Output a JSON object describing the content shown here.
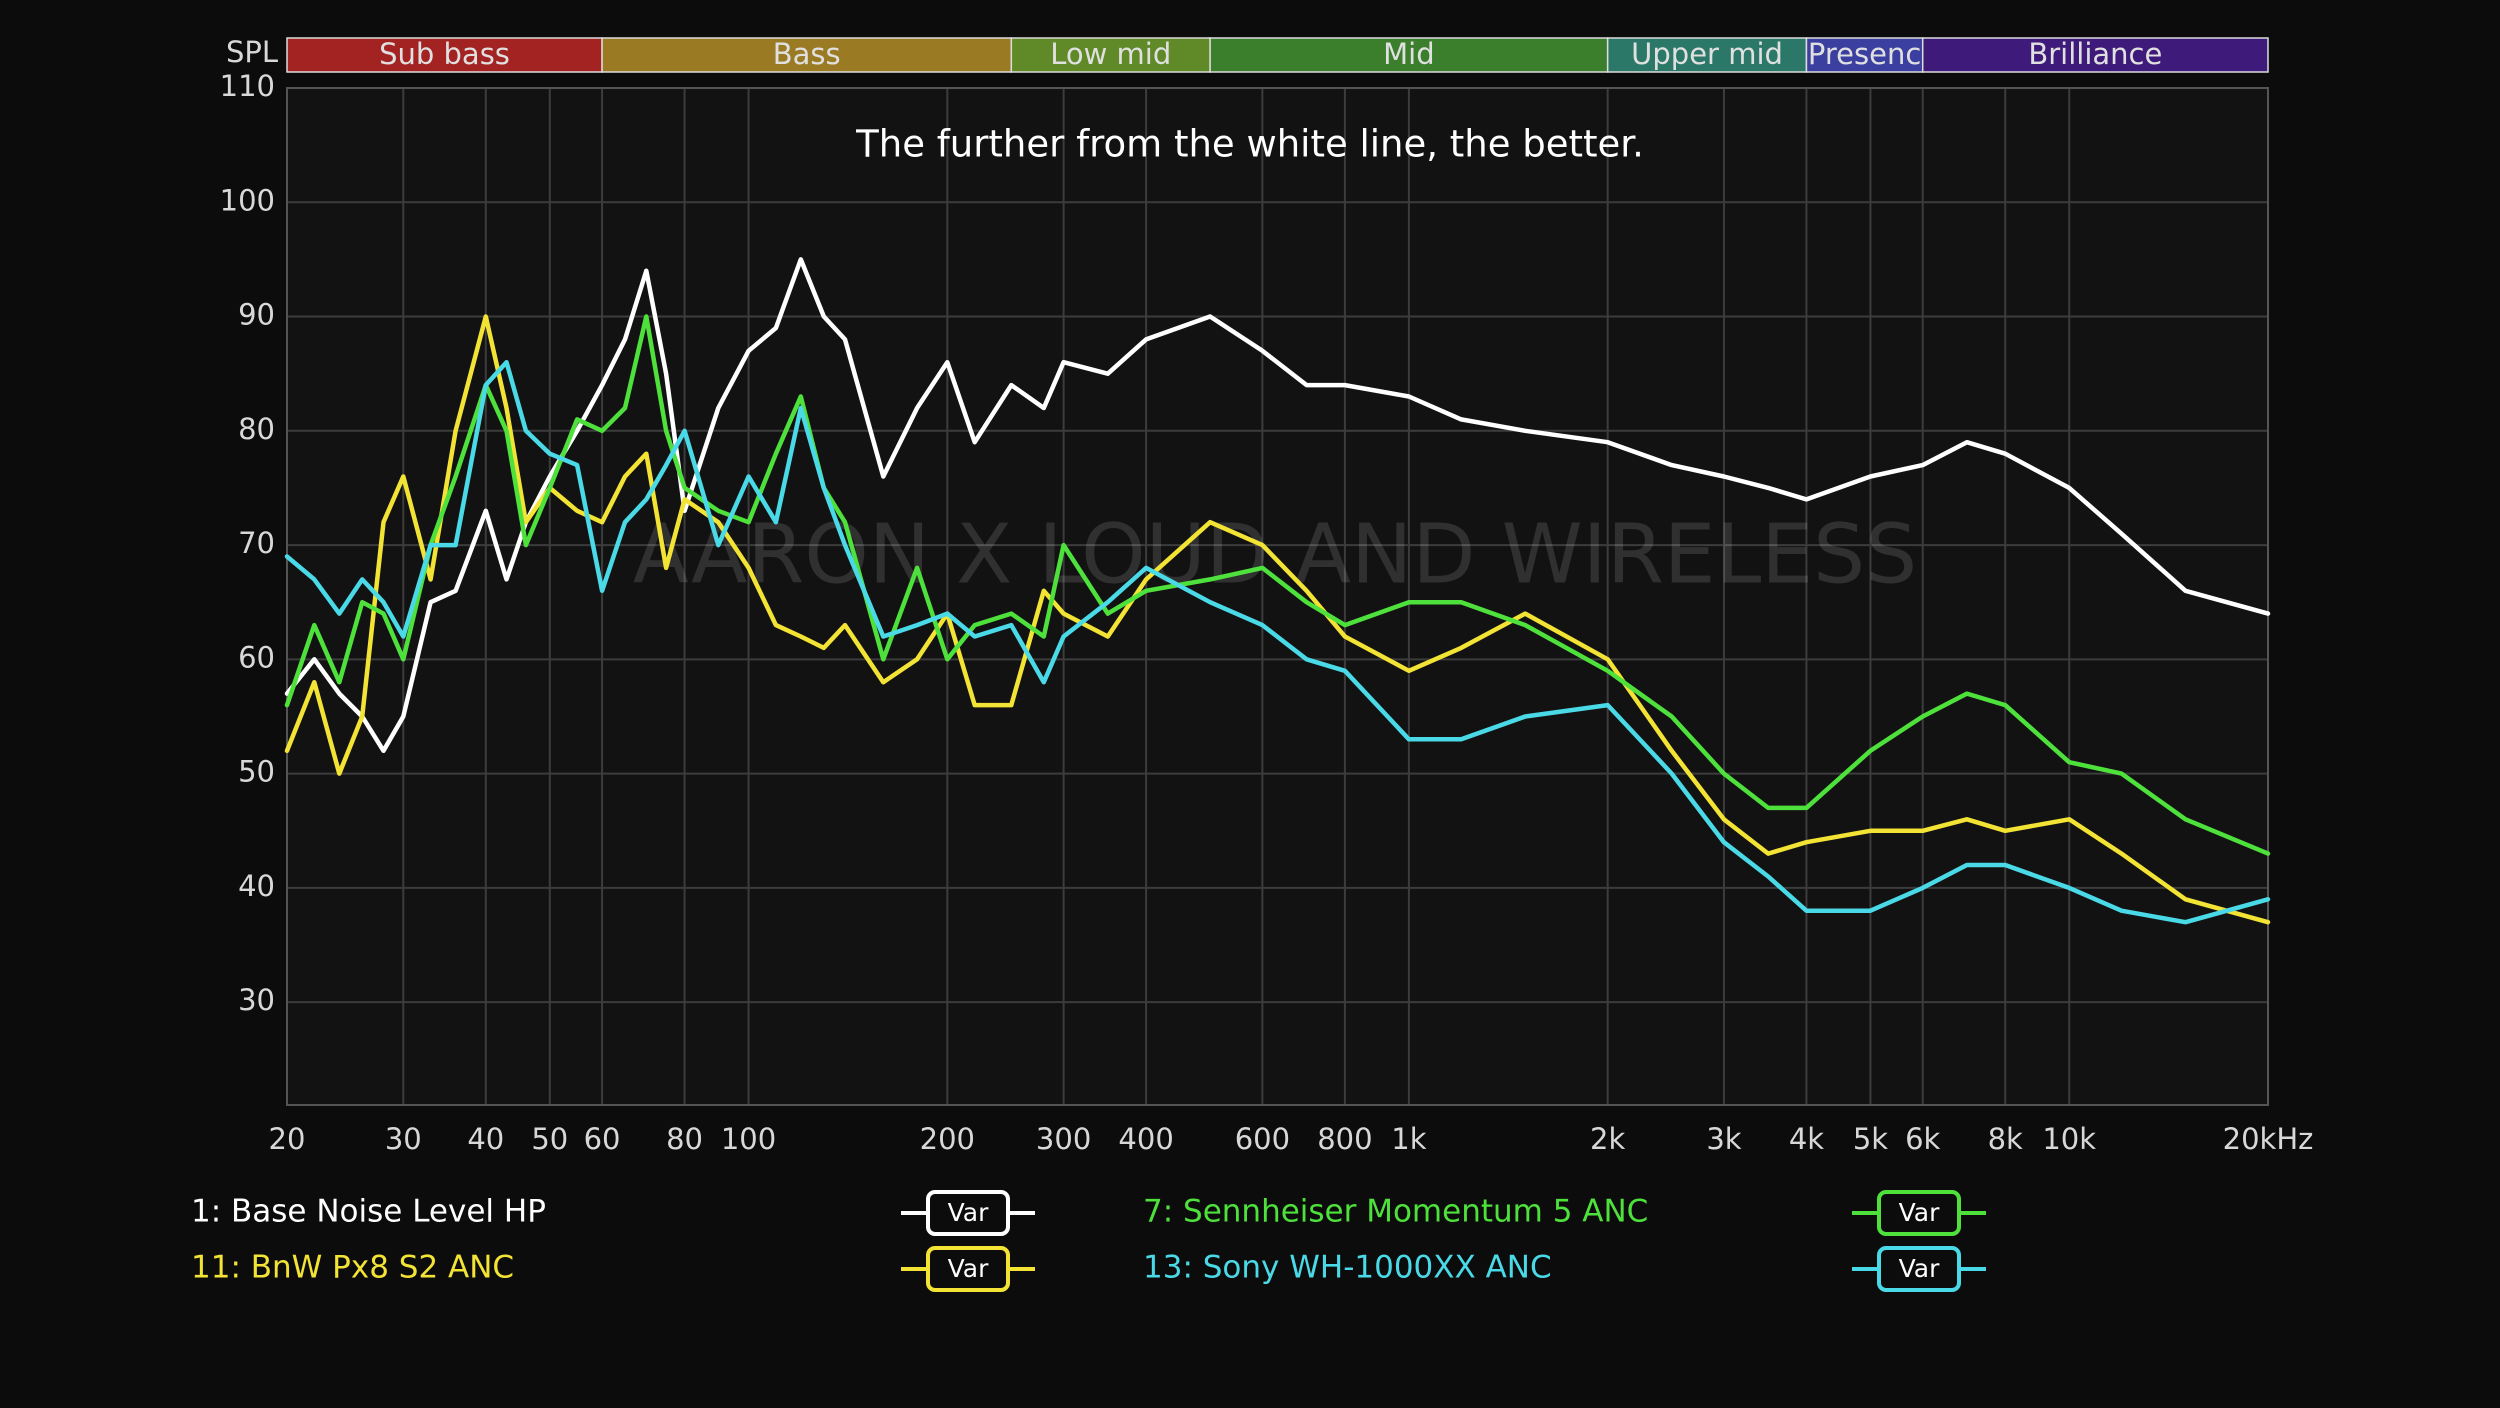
{
  "chart_data": {
    "type": "line",
    "annotation": "The further from the white line, the better.",
    "watermark": "AARON X LOUD AND WIRELESS",
    "y_label": "SPL",
    "log_x": true,
    "grid": true,
    "xlim": [
      20,
      20000
    ],
    "ylim": [
      21,
      110
    ],
    "xticks": [
      20,
      30,
      40,
      50,
      60,
      80,
      100,
      200,
      300,
      400,
      600,
      800,
      {
        "value": 1000,
        "label": "1k"
      },
      {
        "value": 2000,
        "label": "2k"
      },
      {
        "value": 3000,
        "label": "3k"
      },
      {
        "value": 4000,
        "label": "4k"
      },
      {
        "value": 5000,
        "label": "5k"
      },
      {
        "value": 6000,
        "label": "6k"
      },
      {
        "value": 8000,
        "label": "8k"
      },
      {
        "value": 10000,
        "label": "10k"
      },
      {
        "value": 20000,
        "label": "20kHz"
      }
    ],
    "yticks": [
      30,
      40,
      50,
      60,
      70,
      80,
      90,
      100,
      110
    ],
    "bands": [
      {
        "label": "Sub bass",
        "start": 20,
        "end": 60,
        "color": "#a32222"
      },
      {
        "label": "Bass",
        "start": 60,
        "end": 250,
        "color": "#9a7b24"
      },
      {
        "label": "Low mid",
        "start": 250,
        "end": 500,
        "color": "#5f8a27"
      },
      {
        "label": "Mid",
        "start": 500,
        "end": 2000,
        "color": "#3b7e2b"
      },
      {
        "label": "Upper mid",
        "start": 2000,
        "end": 4000,
        "color": "#2b7868"
      },
      {
        "label": "Presenc",
        "start": 4000,
        "end": 6000,
        "color": "#3a3fa0"
      },
      {
        "label": "Brilliance",
        "start": 6000,
        "end": 20000,
        "color": "#3e1b7a"
      }
    ],
    "legend_button": "Var",
    "x": [
      20,
      22,
      24,
      26,
      28,
      30,
      33,
      36,
      40,
      43,
      46,
      50,
      55,
      60,
      65,
      70,
      75,
      80,
      90,
      100,
      110,
      120,
      130,
      140,
      160,
      180,
      200,
      220,
      250,
      280,
      300,
      350,
      400,
      500,
      600,
      700,
      800,
      1000,
      1200,
      1500,
      2000,
      2500,
      3000,
      3500,
      4000,
      5000,
      6000,
      7000,
      8000,
      10000,
      12000,
      15000,
      20000
    ],
    "series": [
      {
        "name": "1: Base Noise Level HP",
        "color": "#ffffff",
        "values": [
          57,
          60,
          57,
          55,
          52,
          55,
          65,
          66,
          73,
          67,
          72,
          76,
          80,
          84,
          88,
          94,
          85,
          73,
          82,
          87,
          89,
          95,
          90,
          88,
          76,
          82,
          86,
          79,
          84,
          82,
          86,
          85,
          88,
          90,
          87,
          84,
          84,
          83,
          81,
          80,
          79,
          77,
          76,
          75,
          74,
          76,
          77,
          79,
          78,
          75,
          71,
          66,
          64
        ]
      },
      {
        "name": "11: BnW Px8 S2 ANC",
        "color": "#f2e335",
        "values": [
          52,
          58,
          50,
          55,
          72,
          76,
          67,
          80,
          90,
          82,
          72,
          75,
          73,
          72,
          76,
          78,
          68,
          74,
          72,
          68,
          63,
          62,
          61,
          63,
          58,
          60,
          64,
          56,
          56,
          66,
          64,
          62,
          67,
          72,
          70,
          66,
          62,
          59,
          61,
          64,
          60,
          52,
          46,
          43,
          44,
          45,
          45,
          46,
          45,
          46,
          43,
          39,
          37
        ]
      },
      {
        "name": "7: Sennheiser Momentum 5 ANC",
        "color": "#4ee13c",
        "values": [
          56,
          63,
          58,
          65,
          64,
          60,
          70,
          76,
          84,
          80,
          70,
          75,
          81,
          80,
          82,
          90,
          80,
          75,
          73,
          72,
          78,
          83,
          75,
          72,
          60,
          68,
          60,
          63,
          64,
          62,
          70,
          64,
          66,
          67,
          68,
          65,
          63,
          65,
          65,
          63,
          59,
          55,
          50,
          47,
          47,
          52,
          55,
          57,
          56,
          51,
          50,
          46,
          43
        ]
      },
      {
        "name": "13: Sony WH-1000XX ANC",
        "color": "#4ad9e6",
        "values": [
          69,
          67,
          64,
          67,
          65,
          62,
          70,
          70,
          84,
          86,
          80,
          78,
          77,
          66,
          72,
          74,
          77,
          80,
          70,
          76,
          72,
          82,
          75,
          70,
          62,
          63,
          64,
          62,
          63,
          58,
          62,
          65,
          68,
          65,
          63,
          60,
          59,
          53,
          53,
          55,
          56,
          50,
          44,
          41,
          38,
          38,
          40,
          42,
          42,
          40,
          38,
          37,
          39
        ]
      }
    ]
  }
}
